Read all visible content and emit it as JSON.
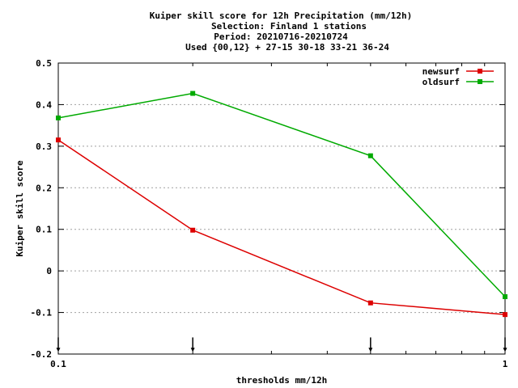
{
  "chart_data": {
    "type": "line",
    "title_lines": [
      "Kuiper skill score  for 12h Precipitation (mm/12h)",
      "Selection: Finland      1 stations",
      "Period: 20210716-20210724",
      "Used {00,12} + 27-15 30-18 33-21 36-24"
    ],
    "xlabel": "thresholds mm/12h",
    "ylabel": "Kuiper skill score",
    "x_scale": "log",
    "xlim": [
      0.1,
      1
    ],
    "ylim": [
      -0.2,
      0.5
    ],
    "x_tick_labels": [
      "0.1",
      "1"
    ],
    "y_ticks": [
      -0.2,
      -0.1,
      0,
      0.1,
      0.2,
      0.3,
      0.4,
      0.5
    ],
    "y_tick_labels": [
      "-0.2",
      "-0.1",
      "0",
      "0.1",
      "0.2",
      "0.3",
      "0.4",
      "0.5"
    ],
    "grid": true,
    "legend_position": "top-right",
    "x": [
      0.1,
      0.2,
      0.5,
      1
    ],
    "series": [
      {
        "name": "newsurf",
        "color": "#dd0000",
        "values": [
          0.315,
          0.098,
          -0.077,
          -0.105
        ]
      },
      {
        "name": "oldsurf",
        "color": "#00aa00",
        "values": [
          0.368,
          0.427,
          0.277,
          -0.062
        ]
      }
    ],
    "arrow_markers_x": [
      0.1,
      0.2,
      0.5,
      1
    ]
  }
}
